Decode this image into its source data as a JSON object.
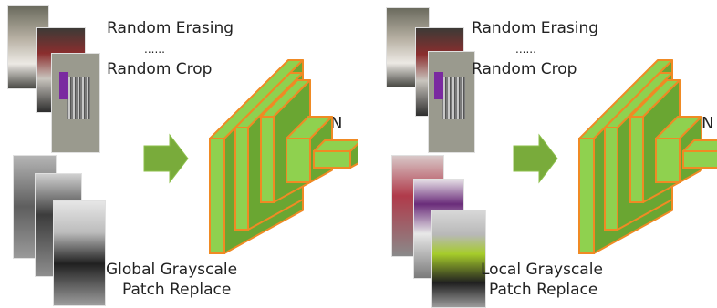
{
  "left": {
    "aug_line1": "Random Erasing",
    "aug_dots": "......",
    "aug_line2": "Random Crop",
    "network_label": "CNN",
    "caption_line1": "Global  Grayscale",
    "caption_line2": "Patch Replace"
  },
  "right": {
    "aug_line1": "Random Erasing",
    "aug_dots": "......",
    "aug_line2": "Random Crop",
    "network_label": "CNN",
    "caption_line1": "Local Grayscale",
    "caption_line2": "Patch Replace"
  },
  "colors": {
    "block_fill": "#6aa632",
    "block_face": "#8fd14f",
    "block_edge": "#f08a24",
    "arrow_fill": "#79ab3b"
  }
}
